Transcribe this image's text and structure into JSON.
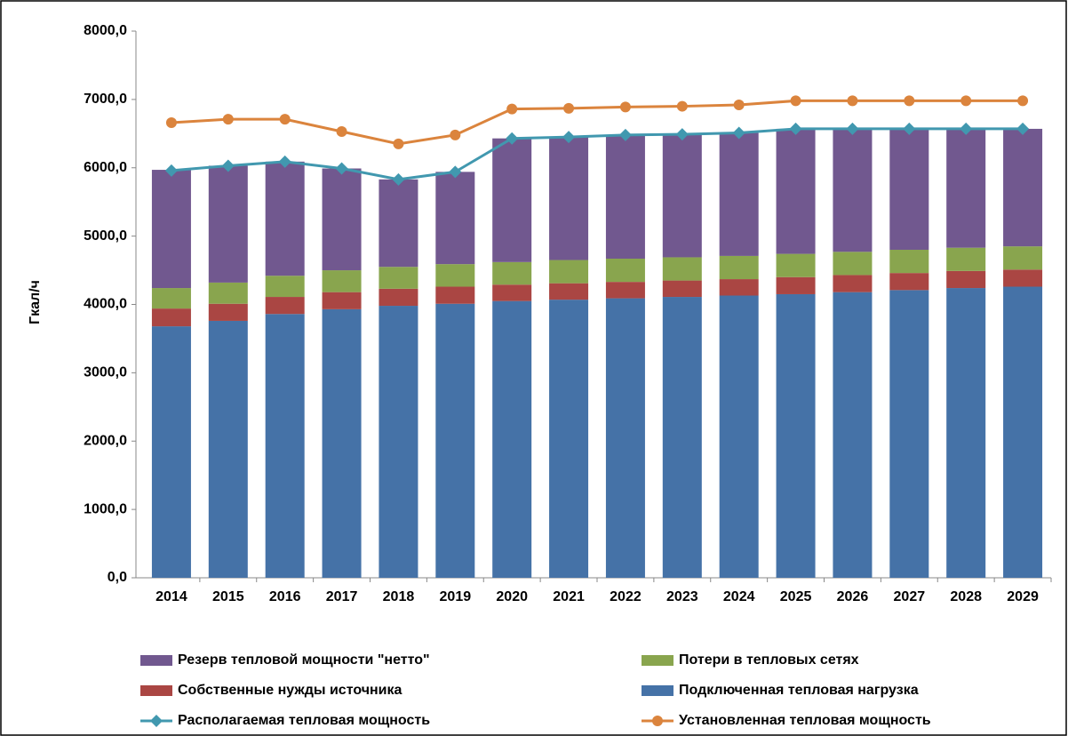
{
  "chart_data": {
    "type": "bar",
    "stacked": true,
    "ylabel": "Гкал/ч",
    "categories": [
      "2014",
      "2015",
      "2016",
      "2017",
      "2018",
      "2019",
      "2020",
      "2021",
      "2022",
      "2023",
      "2024",
      "2025",
      "2026",
      "2027",
      "2028",
      "2029"
    ],
    "ylim": [
      0,
      8000
    ],
    "yticks": [
      {
        "value": 0,
        "label": "0,0"
      },
      {
        "value": 1000,
        "label": "1000,0"
      },
      {
        "value": 2000,
        "label": "2000,0"
      },
      {
        "value": 3000,
        "label": "3000,0"
      },
      {
        "value": 4000,
        "label": "4000,0"
      },
      {
        "value": 5000,
        "label": "5000,0"
      },
      {
        "value": 6000,
        "label": "6000,0"
      },
      {
        "value": 7000,
        "label": "7000,0"
      },
      {
        "value": 8000,
        "label": "8000,0"
      }
    ],
    "grid": false,
    "legend": "bottom",
    "series": [
      {
        "name": "Подключенная тепловая нагрузка",
        "type": "bar",
        "color": "#4572a7",
        "values": [
          3680,
          3760,
          3860,
          3930,
          3980,
          4010,
          4050,
          4070,
          4090,
          4110,
          4130,
          4150,
          4180,
          4210,
          4240,
          4260
        ]
      },
      {
        "name": "Собственные нужды источника",
        "type": "bar",
        "color": "#aa4643",
        "values": [
          260,
          250,
          250,
          250,
          250,
          250,
          240,
          240,
          240,
          240,
          240,
          250,
          250,
          250,
          250,
          250
        ]
      },
      {
        "name": "Потери в тепловых сетях",
        "type": "bar",
        "color": "#89a54e",
        "values": [
          300,
          310,
          310,
          320,
          320,
          330,
          330,
          340,
          340,
          340,
          340,
          340,
          340,
          340,
          340,
          340
        ]
      },
      {
        "name": "Резерв тепловой мощности \"нетто\"",
        "type": "bar",
        "color": "#71588f",
        "values": [
          1730,
          1710,
          1670,
          1490,
          1280,
          1350,
          1810,
          1800,
          1810,
          1800,
          1800,
          1830,
          1800,
          1770,
          1740,
          1720
        ]
      },
      {
        "name": "Располагаемая тепловая мощность",
        "type": "line",
        "marker": "diamond",
        "color": "#4198af",
        "values": [
          5960,
          6030,
          6090,
          5990,
          5830,
          5940,
          6430,
          6450,
          6480,
          6490,
          6510,
          6570,
          6570,
          6570,
          6570,
          6570
        ]
      },
      {
        "name": "Установленная тепловая мощность",
        "type": "line",
        "marker": "circle",
        "color": "#db843d",
        "values": [
          6660,
          6710,
          6710,
          6530,
          6350,
          6480,
          6860,
          6870,
          6890,
          6900,
          6920,
          6980,
          6980,
          6980,
          6980,
          6980
        ]
      }
    ]
  }
}
